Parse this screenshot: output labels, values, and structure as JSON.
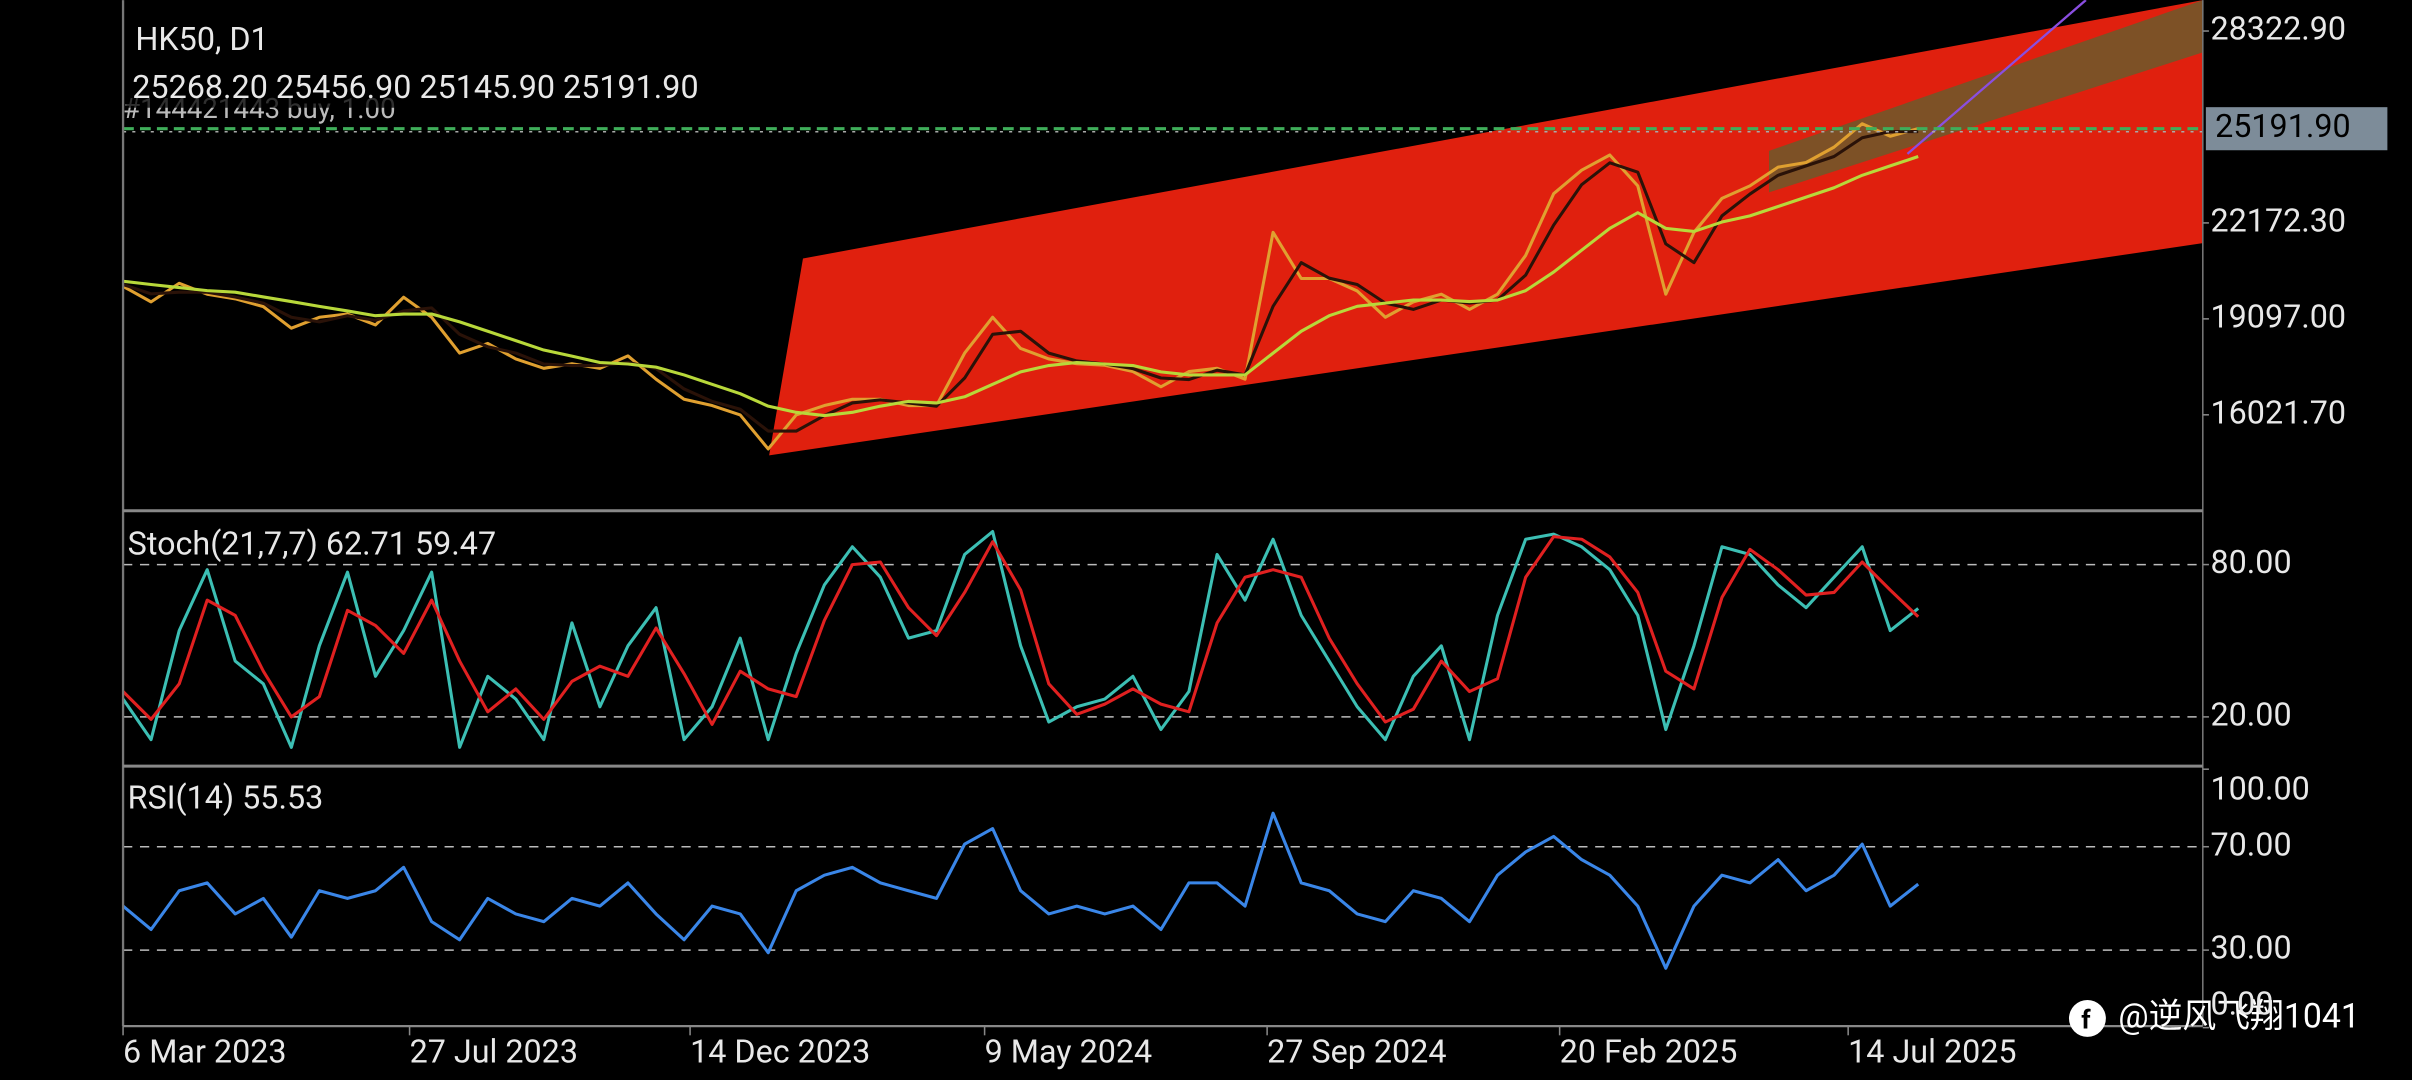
{
  "chart_data": [
    {
      "type": "line",
      "title": "HK50, D1",
      "subtitle": "25268.20 25456.90 25145.90 25191.90",
      "annotation": "#144421443 buy, 1.00",
      "x": [
        "2023-03-06",
        "2023-03-20",
        "2023-04-03",
        "2023-04-17",
        "2023-05-01",
        "2023-05-15",
        "2023-05-29",
        "2023-06-12",
        "2023-06-26",
        "2023-07-10",
        "2023-07-24",
        "2023-08-07",
        "2023-08-21",
        "2023-09-04",
        "2023-09-18",
        "2023-10-02",
        "2023-10-16",
        "2023-10-30",
        "2023-11-13",
        "2023-11-27",
        "2023-12-11",
        "2023-12-25",
        "2024-01-08",
        "2024-01-22",
        "2024-02-05",
        "2024-02-19",
        "2024-03-04",
        "2024-03-18",
        "2024-04-01",
        "2024-04-15",
        "2024-04-29",
        "2024-05-13",
        "2024-05-27",
        "2024-06-10",
        "2024-06-24",
        "2024-07-08",
        "2024-07-22",
        "2024-08-05",
        "2024-08-19",
        "2024-09-02",
        "2024-09-16",
        "2024-09-30",
        "2024-10-14",
        "2024-10-28",
        "2024-11-11",
        "2024-11-25",
        "2024-12-09",
        "2024-12-23",
        "2025-01-06",
        "2025-01-20",
        "2025-02-03",
        "2025-02-17",
        "2025-03-03",
        "2025-03-17",
        "2025-03-31",
        "2025-04-14",
        "2025-04-28",
        "2025-05-12",
        "2025-05-26",
        "2025-06-09",
        "2025-06-23",
        "2025-07-07",
        "2025-07-21",
        "2025-08-04",
        "2025-08-18"
      ],
      "series": [
        {
          "color": "#e0a030",
          "values": [
            20140,
            19640,
            20240,
            19890,
            19740,
            19490,
            18800,
            19150,
            19250,
            18900,
            19790,
            19150,
            18000,
            18310,
            17810,
            17510,
            17660,
            17510,
            17910,
            17160,
            16520,
            16320,
            16020,
            14930,
            16020,
            16320,
            16520,
            16520,
            16320,
            16320,
            18000,
            19150,
            18150,
            17810,
            17660,
            17610,
            17410,
            16920,
            17410,
            17510,
            17160,
            21870,
            20390,
            20390,
            19990,
            19150,
            19640,
            19890,
            19400,
            19890,
            21130,
            23110,
            23860,
            24350,
            23360,
            19890,
            21870,
            22960,
            23360,
            23960,
            24110,
            24600,
            25350,
            24950,
            25191.9
          ]
        },
        {
          "color": "#2a1208",
          "values": [
            20200,
            19900,
            19950,
            19950,
            19800,
            19600,
            19150,
            19000,
            19200,
            19050,
            19350,
            19450,
            18600,
            18200,
            18000,
            17650,
            17600,
            17600,
            17700,
            17500,
            16850,
            16450,
            16200,
            15500,
            15500,
            16000,
            16400,
            16500,
            16400,
            16300,
            17200,
            18600,
            18700,
            18000,
            17750,
            17650,
            17500,
            17200,
            17150,
            17450,
            17300,
            19500,
            20900,
            20400,
            20200,
            19600,
            19400,
            19700,
            19600,
            19700,
            20500,
            22100,
            23400,
            24100,
            23800,
            21500,
            20900,
            22400,
            23100,
            23700,
            24000,
            24300,
            24900,
            25100,
            25100
          ]
        },
        {
          "color": "#b8d83a",
          "values": [
            20300,
            20200,
            20100,
            20000,
            19950,
            19800,
            19650,
            19500,
            19350,
            19200,
            19250,
            19250,
            19000,
            18700,
            18400,
            18100,
            17900,
            17700,
            17650,
            17550,
            17300,
            17000,
            16700,
            16300,
            16100,
            16000,
            16100,
            16300,
            16450,
            16400,
            16600,
            17000,
            17400,
            17600,
            17700,
            17650,
            17600,
            17400,
            17300,
            17300,
            17300,
            18000,
            18700,
            19200,
            19500,
            19600,
            19700,
            19700,
            19650,
            19700,
            20000,
            20600,
            21300,
            22000,
            22500,
            22000,
            21900,
            22200,
            22400,
            22700,
            23000,
            23300,
            23700,
            24000,
            24300
          ]
        }
      ],
      "price_tag": {
        "value": 25191.9,
        "label": "25191.90"
      },
      "xlim": [
        "2023-03-06",
        "2026-01-07"
      ],
      "xticks": [
        {
          "value": "2023-03-06",
          "label": "6 Mar 2023"
        },
        {
          "value": "2023-07-27",
          "label": "27 Jul 2023"
        },
        {
          "value": "2023-12-14",
          "label": "14 Dec 2023"
        },
        {
          "value": "2024-05-09",
          "label": "9 May 2024"
        },
        {
          "value": "2024-09-27",
          "label": "27 Sep 2024"
        },
        {
          "value": "2025-02-20",
          "label": "20 Feb 2025"
        },
        {
          "value": "2025-07-14",
          "label": "14 Jul 2025"
        }
      ],
      "ylim": [
        12946,
        29315
      ],
      "yticks": [
        {
          "value": 16021.7,
          "label": "16021.70"
        },
        {
          "value": 19097,
          "label": "19097.00"
        },
        {
          "value": 22172.3,
          "label": "22172.30"
        },
        {
          "value": 28322.9,
          "label": "28322.90"
        }
      ],
      "grid": false
    },
    {
      "type": "line",
      "title": "Stoch(21,7,7) 62.71 59.47",
      "series": [
        {
          "color": "#3cbfb4",
          "values": [
            27,
            11,
            54,
            78,
            42,
            33,
            8,
            48,
            77,
            36,
            54,
            77,
            8,
            36,
            27,
            11,
            57,
            24,
            48,
            63,
            11,
            24,
            51,
            11,
            45,
            72,
            87,
            75,
            51,
            54,
            84,
            93,
            48,
            18,
            24,
            27,
            36,
            15,
            30,
            84,
            66,
            90,
            60,
            42,
            24,
            11,
            36,
            48,
            11,
            60,
            90,
            92,
            87,
            78,
            60,
            15,
            48,
            87,
            84,
            72,
            63,
            75,
            87,
            54,
            62.71
          ]
        },
        {
          "color": "#e02020",
          "values": [
            30,
            19,
            33,
            66,
            60,
            38,
            20,
            28,
            62,
            56,
            45,
            66,
            42,
            22,
            31,
            19,
            34,
            40,
            36,
            55,
            37,
            17,
            38,
            31,
            28,
            58,
            80,
            81,
            63,
            52,
            69,
            89,
            70,
            33,
            21,
            25,
            31,
            25,
            22,
            57,
            75,
            78,
            75,
            51,
            33,
            18,
            23,
            42,
            30,
            35,
            75,
            91,
            90,
            83,
            69,
            38,
            31,
            67,
            86,
            78,
            68,
            69,
            81,
            70,
            59.47
          ]
        }
      ],
      "ylim": [
        0.6,
        101.2
      ],
      "yticks": [
        {
          "value": 20,
          "label": "20.00"
        },
        {
          "value": 80,
          "label": "80.00"
        }
      ],
      "grid": true
    },
    {
      "type": "line",
      "title": "RSI(14) 55.53",
      "series": [
        {
          "color": "#3a86e8",
          "values": [
            47,
            38,
            53,
            56,
            44,
            50,
            35,
            53,
            50,
            53,
            62,
            41,
            34,
            50,
            44,
            41,
            50,
            47,
            56,
            44,
            34,
            47,
            44,
            29,
            53,
            59,
            62,
            56,
            53,
            50,
            71,
            77,
            53,
            44,
            47,
            44,
            47,
            38,
            56,
            56,
            47,
            83,
            56,
            53,
            44,
            41,
            53,
            50,
            41,
            59,
            68,
            74,
            65,
            59,
            47,
            23,
            47,
            59,
            56,
            65,
            53,
            59,
            71,
            47,
            55.53
          ]
        }
      ],
      "ylim": [
        0,
        100
      ],
      "yticks": [
        {
          "value": 0,
          "label": "0.00"
        },
        {
          "value": 30,
          "label": "30.00"
        },
        {
          "value": 70,
          "label": "70.00"
        },
        {
          "value": 100,
          "label": "100.00"
        }
      ],
      "grid": true
    }
  ],
  "watermark": "@逆风飞翔1041"
}
